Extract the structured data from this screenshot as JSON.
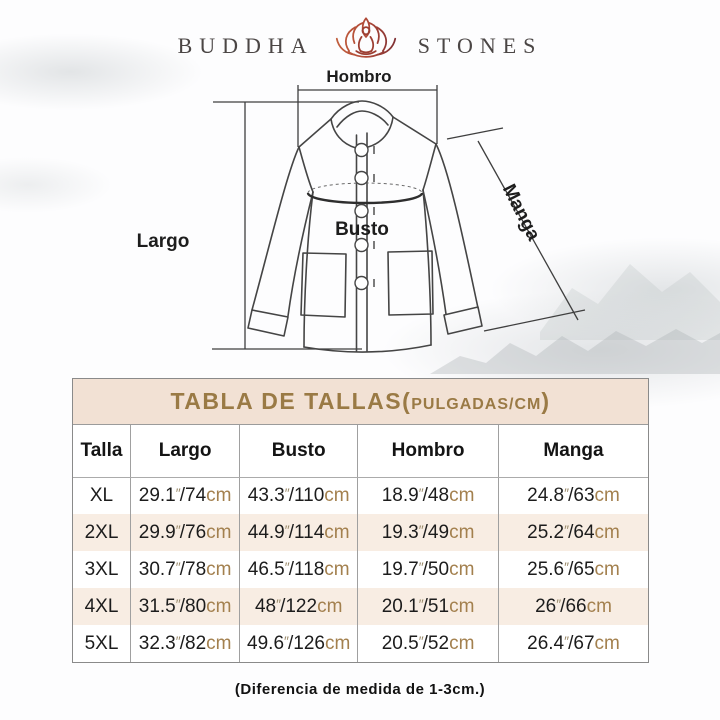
{
  "brand": {
    "name_left": "BUDDHA",
    "name_right": "STONES",
    "icon": "lotus-meditation-icon"
  },
  "diagram_labels": {
    "shoulder": "Hombro",
    "length": "Largo",
    "bust": "Busto",
    "sleeve": "Manga"
  },
  "table_title": {
    "main": "TABLA DE TALLAS",
    "open_paren": "(",
    "unit": "PULGADAS/CM",
    "close_paren": ")"
  },
  "units": {
    "inch_mark": "″",
    "separator": "/",
    "cm_label": "cm"
  },
  "chart_data": {
    "type": "table",
    "title": "TABLA DE TALLAS (PULGADAS/CM)",
    "columns": [
      "Talla",
      "Largo",
      "Busto",
      "Hombro",
      "Manga"
    ],
    "measure_keys": [
      "largo",
      "busto",
      "hombro",
      "manga"
    ],
    "rows": [
      {
        "size": "XL",
        "largo": {
          "in": "29.1",
          "cm": "74"
        },
        "busto": {
          "in": "43.3",
          "cm": "110"
        },
        "hombro": {
          "in": "18.9",
          "cm": "48"
        },
        "manga": {
          "in": "24.8",
          "cm": "63"
        }
      },
      {
        "size": "2XL",
        "largo": {
          "in": "29.9",
          "cm": "76"
        },
        "busto": {
          "in": "44.9",
          "cm": "114"
        },
        "hombro": {
          "in": "19.3",
          "cm": "49"
        },
        "manga": {
          "in": "25.2",
          "cm": "64"
        }
      },
      {
        "size": "3XL",
        "largo": {
          "in": "30.7",
          "cm": "78"
        },
        "busto": {
          "in": "46.5",
          "cm": "118"
        },
        "hombro": {
          "in": "19.7",
          "cm": "50"
        },
        "manga": {
          "in": "25.6",
          "cm": "65"
        }
      },
      {
        "size": "4XL",
        "largo": {
          "in": "31.5",
          "cm": "80"
        },
        "busto": {
          "in": "48",
          "cm": "122"
        },
        "hombro": {
          "in": "20.1",
          "cm": "51"
        },
        "manga": {
          "in": "26",
          "cm": "66"
        }
      },
      {
        "size": "5XL",
        "largo": {
          "in": "32.3",
          "cm": "82"
        },
        "busto": {
          "in": "49.6",
          "cm": "126"
        },
        "hombro": {
          "in": "20.5",
          "cm": "52"
        },
        "manga": {
          "in": "26.4",
          "cm": "67"
        }
      }
    ]
  },
  "footnote": "(Diferencia de medida de 1-3cm.)",
  "colors": {
    "title_text": "#9a7a45",
    "title_band": "#f2e1d4",
    "alt_row": "#f8ede3",
    "cm_text": "#a3804e",
    "line_art": "#454545",
    "lotus_orange": "#c2603e",
    "lotus_maroon": "#7d2f34"
  }
}
